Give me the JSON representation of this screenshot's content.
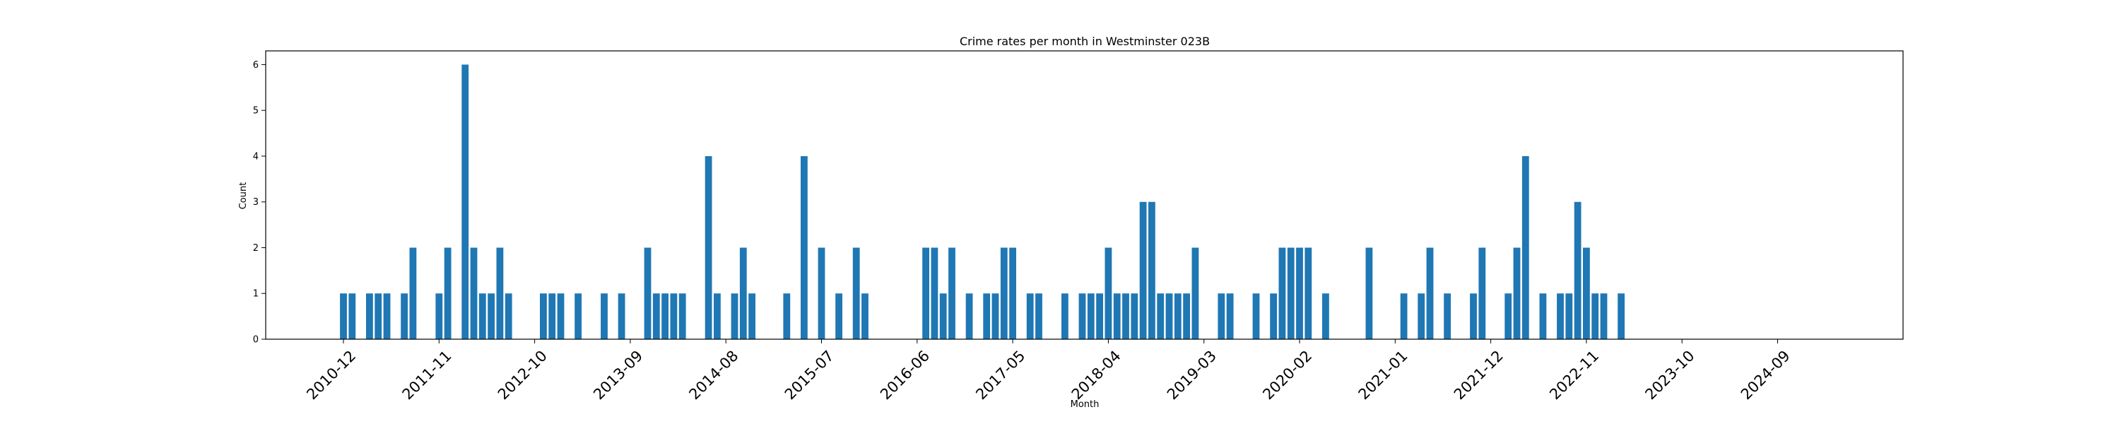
{
  "chart_data": {
    "type": "bar",
    "title": "Crime rates per month in Westminster 023B",
    "xlabel": "Month",
    "ylabel": "Count",
    "ylim": [
      0,
      6.3
    ],
    "yticks": [
      0,
      1,
      2,
      3,
      4,
      5,
      6
    ],
    "xtick_labels": [
      "2010-12",
      "2011-11",
      "2012-10",
      "2013-09",
      "2014-08",
      "2015-07",
      "2016-06",
      "2017-05",
      "2018-04",
      "2019-03",
      "2020-02",
      "2021-01",
      "2021-12",
      "2022-11",
      "2023-10",
      "2024-09"
    ],
    "bar_color": "#1f77b4",
    "grid": false,
    "data": [
      {
        "x": "2010-12",
        "y": 1
      },
      {
        "x": "2011-01",
        "y": 1
      },
      {
        "x": "2011-03",
        "y": 1
      },
      {
        "x": "2011-04",
        "y": 1
      },
      {
        "x": "2011-05",
        "y": 1
      },
      {
        "x": "2011-07",
        "y": 1
      },
      {
        "x": "2011-08",
        "y": 2
      },
      {
        "x": "2011-11",
        "y": 1
      },
      {
        "x": "2011-12",
        "y": 2
      },
      {
        "x": "2012-02",
        "y": 6
      },
      {
        "x": "2012-03",
        "y": 2
      },
      {
        "x": "2012-04",
        "y": 1
      },
      {
        "x": "2012-05",
        "y": 1
      },
      {
        "x": "2012-06",
        "y": 2
      },
      {
        "x": "2012-07",
        "y": 1
      },
      {
        "x": "2012-11",
        "y": 1
      },
      {
        "x": "2012-12",
        "y": 1
      },
      {
        "x": "2013-01",
        "y": 1
      },
      {
        "x": "2013-03",
        "y": 1
      },
      {
        "x": "2013-06",
        "y": 1
      },
      {
        "x": "2013-08",
        "y": 1
      },
      {
        "x": "2013-11",
        "y": 2
      },
      {
        "x": "2013-12",
        "y": 1
      },
      {
        "x": "2014-01",
        "y": 1
      },
      {
        "x": "2014-02",
        "y": 1
      },
      {
        "x": "2014-03",
        "y": 1
      },
      {
        "x": "2014-06",
        "y": 4
      },
      {
        "x": "2014-07",
        "y": 1
      },
      {
        "x": "2014-09",
        "y": 1
      },
      {
        "x": "2014-10",
        "y": 2
      },
      {
        "x": "2014-11",
        "y": 1
      },
      {
        "x": "2015-03",
        "y": 1
      },
      {
        "x": "2015-05",
        "y": 4
      },
      {
        "x": "2015-07",
        "y": 2
      },
      {
        "x": "2015-09",
        "y": 1
      },
      {
        "x": "2015-11",
        "y": 2
      },
      {
        "x": "2015-12",
        "y": 1
      },
      {
        "x": "2016-07",
        "y": 2
      },
      {
        "x": "2016-08",
        "y": 2
      },
      {
        "x": "2016-09",
        "y": 1
      },
      {
        "x": "2016-10",
        "y": 2
      },
      {
        "x": "2016-12",
        "y": 1
      },
      {
        "x": "2017-02",
        "y": 1
      },
      {
        "x": "2017-03",
        "y": 1
      },
      {
        "x": "2017-04",
        "y": 2
      },
      {
        "x": "2017-05",
        "y": 2
      },
      {
        "x": "2017-07",
        "y": 1
      },
      {
        "x": "2017-08",
        "y": 1
      },
      {
        "x": "2017-11",
        "y": 1
      },
      {
        "x": "2018-01",
        "y": 1
      },
      {
        "x": "2018-02",
        "y": 1
      },
      {
        "x": "2018-03",
        "y": 1
      },
      {
        "x": "2018-04",
        "y": 2
      },
      {
        "x": "2018-05",
        "y": 1
      },
      {
        "x": "2018-06",
        "y": 1
      },
      {
        "x": "2018-07",
        "y": 1
      },
      {
        "x": "2018-08",
        "y": 3
      },
      {
        "x": "2018-09",
        "y": 3
      },
      {
        "x": "2018-10",
        "y": 1
      },
      {
        "x": "2018-11",
        "y": 1
      },
      {
        "x": "2018-12",
        "y": 1
      },
      {
        "x": "2019-01",
        "y": 1
      },
      {
        "x": "2019-02",
        "y": 2
      },
      {
        "x": "2019-05",
        "y": 1
      },
      {
        "x": "2019-06",
        "y": 1
      },
      {
        "x": "2019-09",
        "y": 1
      },
      {
        "x": "2019-11",
        "y": 1
      },
      {
        "x": "2019-12",
        "y": 2
      },
      {
        "x": "2020-01",
        "y": 2
      },
      {
        "x": "2020-02",
        "y": 2
      },
      {
        "x": "2020-03",
        "y": 2
      },
      {
        "x": "2020-05",
        "y": 1
      },
      {
        "x": "2020-10",
        "y": 2
      },
      {
        "x": "2021-02",
        "y": 1
      },
      {
        "x": "2021-04",
        "y": 1
      },
      {
        "x": "2021-05",
        "y": 2
      },
      {
        "x": "2021-07",
        "y": 1
      },
      {
        "x": "2021-10",
        "y": 1
      },
      {
        "x": "2021-11",
        "y": 2
      },
      {
        "x": "2022-02",
        "y": 1
      },
      {
        "x": "2022-03",
        "y": 2
      },
      {
        "x": "2022-04",
        "y": 4
      },
      {
        "x": "2022-06",
        "y": 1
      },
      {
        "x": "2022-08",
        "y": 1
      },
      {
        "x": "2022-09",
        "y": 1
      },
      {
        "x": "2022-10",
        "y": 3
      },
      {
        "x": "2022-11",
        "y": 2
      },
      {
        "x": "2022-12",
        "y": 1
      },
      {
        "x": "2023-01",
        "y": 1
      },
      {
        "x": "2023-03",
        "y": 1
      }
    ]
  }
}
